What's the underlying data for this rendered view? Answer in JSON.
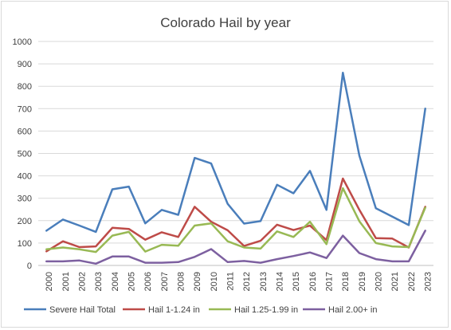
{
  "chart_data": {
    "type": "line",
    "title": "Colorado Hail by year",
    "xlabel": "",
    "ylabel": "",
    "ylim": [
      0,
      1000
    ],
    "yticks": [
      0,
      100,
      200,
      300,
      400,
      500,
      600,
      700,
      800,
      900,
      1000
    ],
    "grid": true,
    "legend_position": "bottom",
    "categories": [
      "2000",
      "2001",
      "2002",
      "2003",
      "2004",
      "2005",
      "2006",
      "2007",
      "2008",
      "2009",
      "2010",
      "2011",
      "2012",
      "2013",
      "2014",
      "2015",
      "2016",
      "2017",
      "2018",
      "2019",
      "2020",
      "2021",
      "2022",
      "2023"
    ],
    "series": [
      {
        "name": "Severe Hail Total",
        "color": "#4a7ebb",
        "values": [
          155,
          205,
          178,
          150,
          340,
          352,
          188,
          248,
          226,
          480,
          455,
          275,
          187,
          198,
          360,
          322,
          422,
          248,
          860,
          490,
          255,
          218,
          180,
          700
        ]
      },
      {
        "name": "Hail 1-1.24 in",
        "color": "#be4b48",
        "values": [
          63,
          108,
          82,
          85,
          168,
          163,
          115,
          148,
          127,
          262,
          195,
          157,
          87,
          110,
          182,
          158,
          178,
          113,
          388,
          248,
          122,
          120,
          80,
          262
        ]
      },
      {
        "name": "Hail 1.25-1.99 in",
        "color": "#98b954",
        "values": [
          72,
          80,
          72,
          60,
          133,
          150,
          62,
          92,
          88,
          178,
          188,
          108,
          80,
          75,
          152,
          127,
          195,
          95,
          345,
          197,
          100,
          85,
          82,
          258
        ]
      },
      {
        "name": "Hail 2.00+ in",
        "color": "#7d60a0",
        "values": [
          18,
          18,
          22,
          8,
          40,
          40,
          12,
          12,
          15,
          38,
          73,
          15,
          20,
          12,
          28,
          42,
          58,
          33,
          133,
          55,
          28,
          18,
          18,
          155
        ]
      }
    ]
  }
}
